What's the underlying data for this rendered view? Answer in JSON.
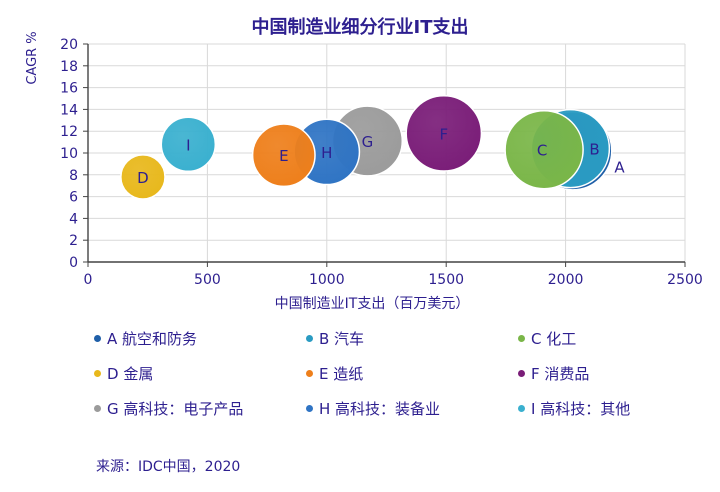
{
  "chart_data": {
    "type": "scatter",
    "variant": "bubble",
    "title": "中国制造业细分行业IT支出",
    "xlabel": "中国制造业IT支出（百万美元）",
    "ylabel": "CAGR %",
    "xlim": [
      0,
      2500
    ],
    "ylim": [
      0,
      20
    ],
    "xticks": [
      0,
      500,
      1000,
      1500,
      2000,
      2500
    ],
    "yticks": [
      0,
      2,
      4,
      6,
      8,
      10,
      12,
      14,
      16,
      18,
      20
    ],
    "grid": true,
    "legend_position": "bottom",
    "points": [
      {
        "label": "A",
        "name": "航空和防务",
        "x": 2030,
        "y": 10.2,
        "size": 1.0,
        "color": "#1f5fa8"
      },
      {
        "label": "B",
        "name": "汽车",
        "x": 2020,
        "y": 10.4,
        "size": 1.0,
        "color": "#2a9bc2"
      },
      {
        "label": "C",
        "name": "化工",
        "x": 1910,
        "y": 10.3,
        "size": 1.0,
        "color": "#7ab648"
      },
      {
        "label": "D",
        "name": "金属",
        "x": 230,
        "y": 7.8,
        "size": 0.32,
        "color": "#e8b81c"
      },
      {
        "label": "E",
        "name": "造纸",
        "x": 820,
        "y": 9.8,
        "size": 0.64,
        "color": "#ee7f1b"
      },
      {
        "label": "F",
        "name": "消费品",
        "x": 1490,
        "y": 11.8,
        "size": 0.93,
        "color": "#7a1d78"
      },
      {
        "label": "G",
        "name": "高科技：电子产品",
        "x": 1170,
        "y": 11.1,
        "size": 0.8,
        "color": "#9b9b9b"
      },
      {
        "label": "H",
        "name": "高科技：装备业",
        "x": 1000,
        "y": 10.1,
        "size": 0.7,
        "color": "#2f74c4"
      },
      {
        "label": "I",
        "name": "高科技：其他",
        "x": 420,
        "y": 10.8,
        "size": 0.48,
        "color": "#3ab0cf"
      }
    ]
  },
  "legend": [
    {
      "text": "A 航空和防务",
      "color": "#1f5fa8"
    },
    {
      "text": "B 汽车",
      "color": "#2a9bc2"
    },
    {
      "text": "C 化工",
      "color": "#7ab648"
    },
    {
      "text": "D 金属",
      "color": "#e8b81c"
    },
    {
      "text": "E 造纸",
      "color": "#ee7f1b"
    },
    {
      "text": "F 消费品",
      "color": "#7a1d78"
    },
    {
      "text": "G 高科技：电子产品",
      "color": "#9b9b9b"
    },
    {
      "text": "H 高科技：装备业",
      "color": "#2f74c4"
    },
    {
      "text": "I 高科技：其他",
      "color": "#3ab0cf"
    }
  ],
  "source": "来源：IDC中国，2020"
}
